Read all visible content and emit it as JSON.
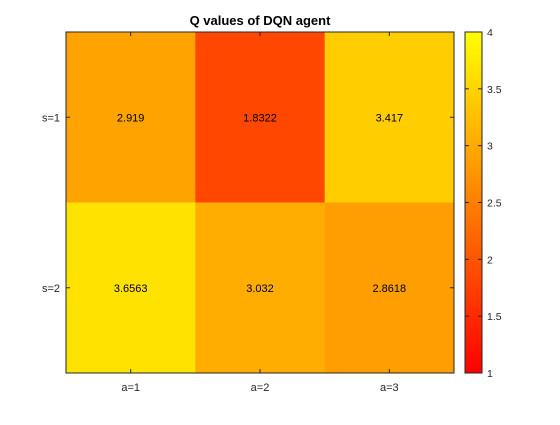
{
  "chart_data": {
    "type": "heatmap",
    "title": "Q values of DQN agent",
    "xlabel": "",
    "ylabel": "",
    "x_categories": [
      "a=1",
      "a=2",
      "a=3"
    ],
    "y_categories": [
      "s=1",
      "s=2"
    ],
    "values": [
      [
        2.919,
        1.8322,
        3.417
      ],
      [
        3.6563,
        3.032,
        2.8618
      ]
    ],
    "value_labels": [
      [
        "2.919",
        "1.8322",
        "3.417"
      ],
      [
        "3.6563",
        "3.032",
        "2.8618"
      ]
    ],
    "colormap": "autumn",
    "colormap_low": "#ff0000",
    "colormap_high": "#ffff00",
    "clim": [
      1,
      4
    ],
    "colorbar": {
      "ticks": [
        1,
        1.5,
        2,
        2.5,
        3,
        3.5,
        4
      ],
      "tick_labels": [
        "1",
        "1.5",
        "2",
        "2.5",
        "3",
        "3.5",
        "4"
      ],
      "placement": "right"
    },
    "grid": false
  }
}
